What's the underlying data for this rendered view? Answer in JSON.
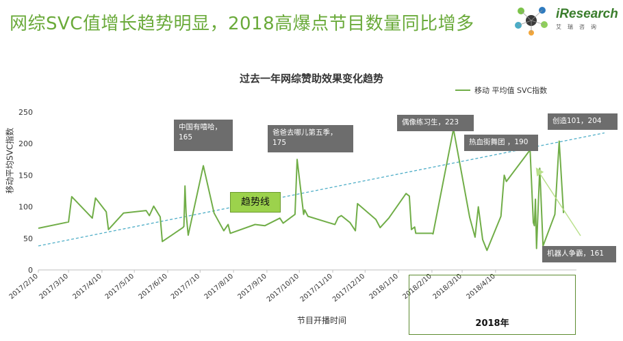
{
  "slide": {
    "title": "网综SVC值增长趋势明显，2018高爆点节目数量同比增多"
  },
  "brand": {
    "name": "iResearch",
    "sub": "艾瑞咨询"
  },
  "chart_data": {
    "type": "line",
    "title": "过去一年网综赞助效果变化趋势",
    "xlabel": "节目开播时间",
    "ylabel": "移动平均SVC指数",
    "ylim": [
      0,
      250
    ],
    "yticks": [
      0,
      50,
      100,
      150,
      200,
      250
    ],
    "xticks": [
      "2017/2/10",
      "2017/3/10",
      "2017/4/10",
      "2017/5/10",
      "2017/6/10",
      "2017/7/10",
      "2017/8/10",
      "2017/9/10",
      "2017/10/10",
      "2017/11/10",
      "2017/12/10",
      "2018/1/10",
      "2018/2/10",
      "2018/3/10",
      "2018/4/10"
    ],
    "legend": {
      "position": "top-right"
    },
    "series": [
      {
        "name": "移动 平均值 SVC指数",
        "color": "#70ad47",
        "points": [
          [
            "2017-02-10",
            66
          ],
          [
            "2017-03-10",
            76
          ],
          [
            "2017-03-13",
            116
          ],
          [
            "2017-04-01",
            82
          ],
          [
            "2017-04-04",
            114
          ],
          [
            "2017-04-14",
            92
          ],
          [
            "2017-04-16",
            64
          ],
          [
            "2017-04-30",
            90
          ],
          [
            "2017-05-21",
            94
          ],
          [
            "2017-05-24",
            86
          ],
          [
            "2017-05-28",
            101
          ],
          [
            "2017-06-03",
            84
          ],
          [
            "2017-06-05",
            45
          ],
          [
            "2017-06-24",
            67
          ],
          [
            "2017-06-25",
            69
          ],
          [
            "2017-06-26",
            133
          ],
          [
            "2017-06-27",
            90
          ],
          [
            "2017-06-29",
            55
          ],
          [
            "2017-07-13",
            165
          ],
          [
            "2017-07-23",
            90
          ],
          [
            "2017-08-01",
            62
          ],
          [
            "2017-08-05",
            72
          ],
          [
            "2017-08-07",
            58
          ],
          [
            "2017-08-30",
            72
          ],
          [
            "2017-09-08",
            70
          ],
          [
            "2017-09-22",
            82
          ],
          [
            "2017-09-25",
            74
          ],
          [
            "2017-10-06",
            88
          ],
          [
            "2017-10-08",
            175
          ],
          [
            "2017-10-14",
            88
          ],
          [
            "2017-10-15",
            95
          ],
          [
            "2017-10-18",
            85
          ],
          [
            "2017-11-06",
            75
          ],
          [
            "2017-11-12",
            72
          ],
          [
            "2017-11-15",
            83
          ],
          [
            "2017-11-18",
            86
          ],
          [
            "2017-11-26",
            75
          ],
          [
            "2017-12-01",
            62
          ],
          [
            "2017-12-03",
            105
          ],
          [
            "2017-12-20",
            80
          ],
          [
            "2017-12-24",
            67
          ],
          [
            "2018-01-01",
            82
          ],
          [
            "2018-01-17",
            121
          ],
          [
            "2018-01-20",
            117
          ],
          [
            "2018-01-22",
            64
          ],
          [
            "2018-01-25",
            68
          ],
          [
            "2018-01-26",
            58
          ],
          [
            "2018-02-10",
            58
          ],
          [
            "2018-02-11",
            57
          ],
          [
            "2018-03-02",
            223
          ],
          [
            "2018-03-17",
            83
          ],
          [
            "2018-03-22",
            52
          ],
          [
            "2018-03-25",
            100
          ],
          [
            "2018-03-29",
            48
          ],
          [
            "2018-04-02",
            31
          ],
          [
            "2018-04-15",
            85
          ],
          [
            "2018-04-18",
            150
          ],
          [
            "2018-04-20",
            140
          ],
          [
            "2018-05-12",
            190
          ],
          [
            "2018-05-15",
            75
          ],
          [
            "2018-05-16",
            70
          ],
          [
            "2018-05-17",
            112
          ],
          [
            "2018-05-18",
            34
          ],
          [
            "2018-05-21",
            161
          ],
          [
            "2018-05-24",
            38
          ],
          [
            "2018-06-04",
            88
          ],
          [
            "2018-06-08",
            204
          ],
          [
            "2018-06-12",
            90
          ]
        ]
      }
    ],
    "trendline": {
      "label": "趋势线",
      "color": "#4bacc6",
      "from": [
        "2017-02-10",
        38
      ],
      "to": [
        "2018-07-20",
        217
      ]
    },
    "annotations": [
      {
        "text": "中国有嘻哈，\n165"
      },
      {
        "text": "爸爸去哪儿第五季，\n175"
      },
      {
        "text": "偶像练习生，223"
      },
      {
        "text": "热血街舞团 ，190"
      },
      {
        "text": "创造101，204"
      },
      {
        "text": "机器人争霸，161"
      }
    ],
    "highlight": {
      "label": "2018年"
    }
  }
}
